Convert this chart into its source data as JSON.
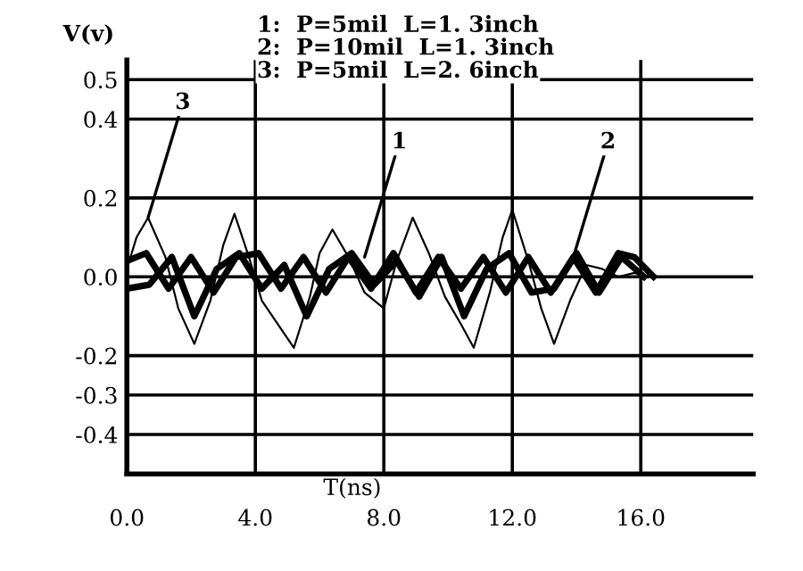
{
  "chart_data": {
    "type": "line",
    "xlabel": "T(ns)",
    "ylabel": "V(v)",
    "xlim": [
      0,
      19.5
    ],
    "ylim": [
      -0.5,
      0.55
    ],
    "xticks": [
      {
        "value": 0,
        "label": "0.0"
      },
      {
        "value": 4,
        "label": "4.0"
      },
      {
        "value": 8,
        "label": "8.0"
      },
      {
        "value": 12,
        "label": "12.0"
      },
      {
        "value": 16,
        "label": "16.0"
      }
    ],
    "yticks": [
      {
        "value": 0.5,
        "label": "0.5"
      },
      {
        "value": 0.4,
        "label": "0.4"
      },
      {
        "value": 0.2,
        "label": "0.2"
      },
      {
        "value": 0,
        "label": "0.0"
      },
      {
        "value": -0.2,
        "label": "-0.2"
      },
      {
        "value": -0.3,
        "label": "-0.3"
      },
      {
        "value": -0.4,
        "label": "-0.4"
      }
    ],
    "grid": true,
    "line_style": "solid",
    "marker": "none",
    "series": [
      {
        "color": "#000000",
        "x": [
          0,
          0.3,
          0.66,
          1.2,
          1.6,
          2.1,
          2.6,
          3.0,
          3.35,
          3.8,
          4.2,
          4.7,
          5.2,
          5.7,
          6.0,
          6.4,
          6.9,
          7.4,
          8.0,
          8.4,
          8.9,
          9.4,
          9.9,
          10.4,
          10.8,
          11.3,
          11.7,
          12.0,
          12.5,
          12.9,
          13.3,
          13.8,
          14.3,
          14.8,
          15.3,
          15.8,
          16.3
        ],
        "values": [
          0.02,
          0.1,
          0.15,
          0.05,
          -0.08,
          -0.17,
          -0.06,
          0.08,
          0.16,
          0.05,
          -0.06,
          -0.12,
          -0.18,
          -0.05,
          0.06,
          0.12,
          0.05,
          -0.04,
          -0.08,
          0.04,
          0.15,
          0.06,
          -0.05,
          -0.12,
          -0.18,
          -0.04,
          0.1,
          0.17,
          0.04,
          -0.08,
          -0.17,
          -0.06,
          0.03,
          0.02,
          0.0,
          0.01,
          0.0
        ]
      },
      {
        "color": "#000000",
        "x": [
          0,
          0.7,
          1.4,
          2.1,
          2.8,
          3.5,
          4.2,
          4.9,
          5.6,
          6.3,
          7.0,
          7.7,
          8.4,
          9.1,
          9.8,
          10.5,
          11.2,
          11.9,
          12.6,
          13.3,
          14.0,
          14.7,
          15.4,
          16.1
        ],
        "values": [
          -0.03,
          -0.02,
          0.05,
          -0.1,
          0.02,
          0.06,
          -0.03,
          0.03,
          -0.1,
          0.02,
          0.06,
          -0.02,
          0.04,
          -0.05,
          0.05,
          -0.1,
          0.02,
          0.06,
          -0.04,
          -0.03,
          0.06,
          -0.04,
          0.05,
          0.0
        ]
      },
      {
        "color": "#000000",
        "x": [
          0,
          0.6,
          1.3,
          2.0,
          2.7,
          3.4,
          4.1,
          4.8,
          5.5,
          6.2,
          6.9,
          7.6,
          8.3,
          9.0,
          9.7,
          10.4,
          11.1,
          11.8,
          12.5,
          13.2,
          13.9,
          14.6,
          15.3,
          15.8,
          16.4
        ],
        "values": [
          0.04,
          0.06,
          -0.03,
          0.05,
          -0.04,
          0.05,
          0.06,
          -0.03,
          0.05,
          -0.04,
          0.05,
          -0.03,
          0.06,
          -0.04,
          0.05,
          -0.03,
          0.05,
          -0.04,
          0.05,
          -0.04,
          0.05,
          -0.04,
          0.06,
          0.05,
          0.0
        ]
      }
    ],
    "annotations": [
      "1:  P=5mil  L=1. 3inch",
      "2:  P=10mil  L=1. 3inch",
      "3:  P=5mil  L=2. 6inch",
      {
        "text": "3",
        "x": 0.66,
        "y": 0.15
      },
      {
        "text": "1",
        "x": 7.4,
        "y": 0.05
      },
      {
        "text": "2",
        "x": 13.9,
        "y": 0.05
      }
    ]
  }
}
